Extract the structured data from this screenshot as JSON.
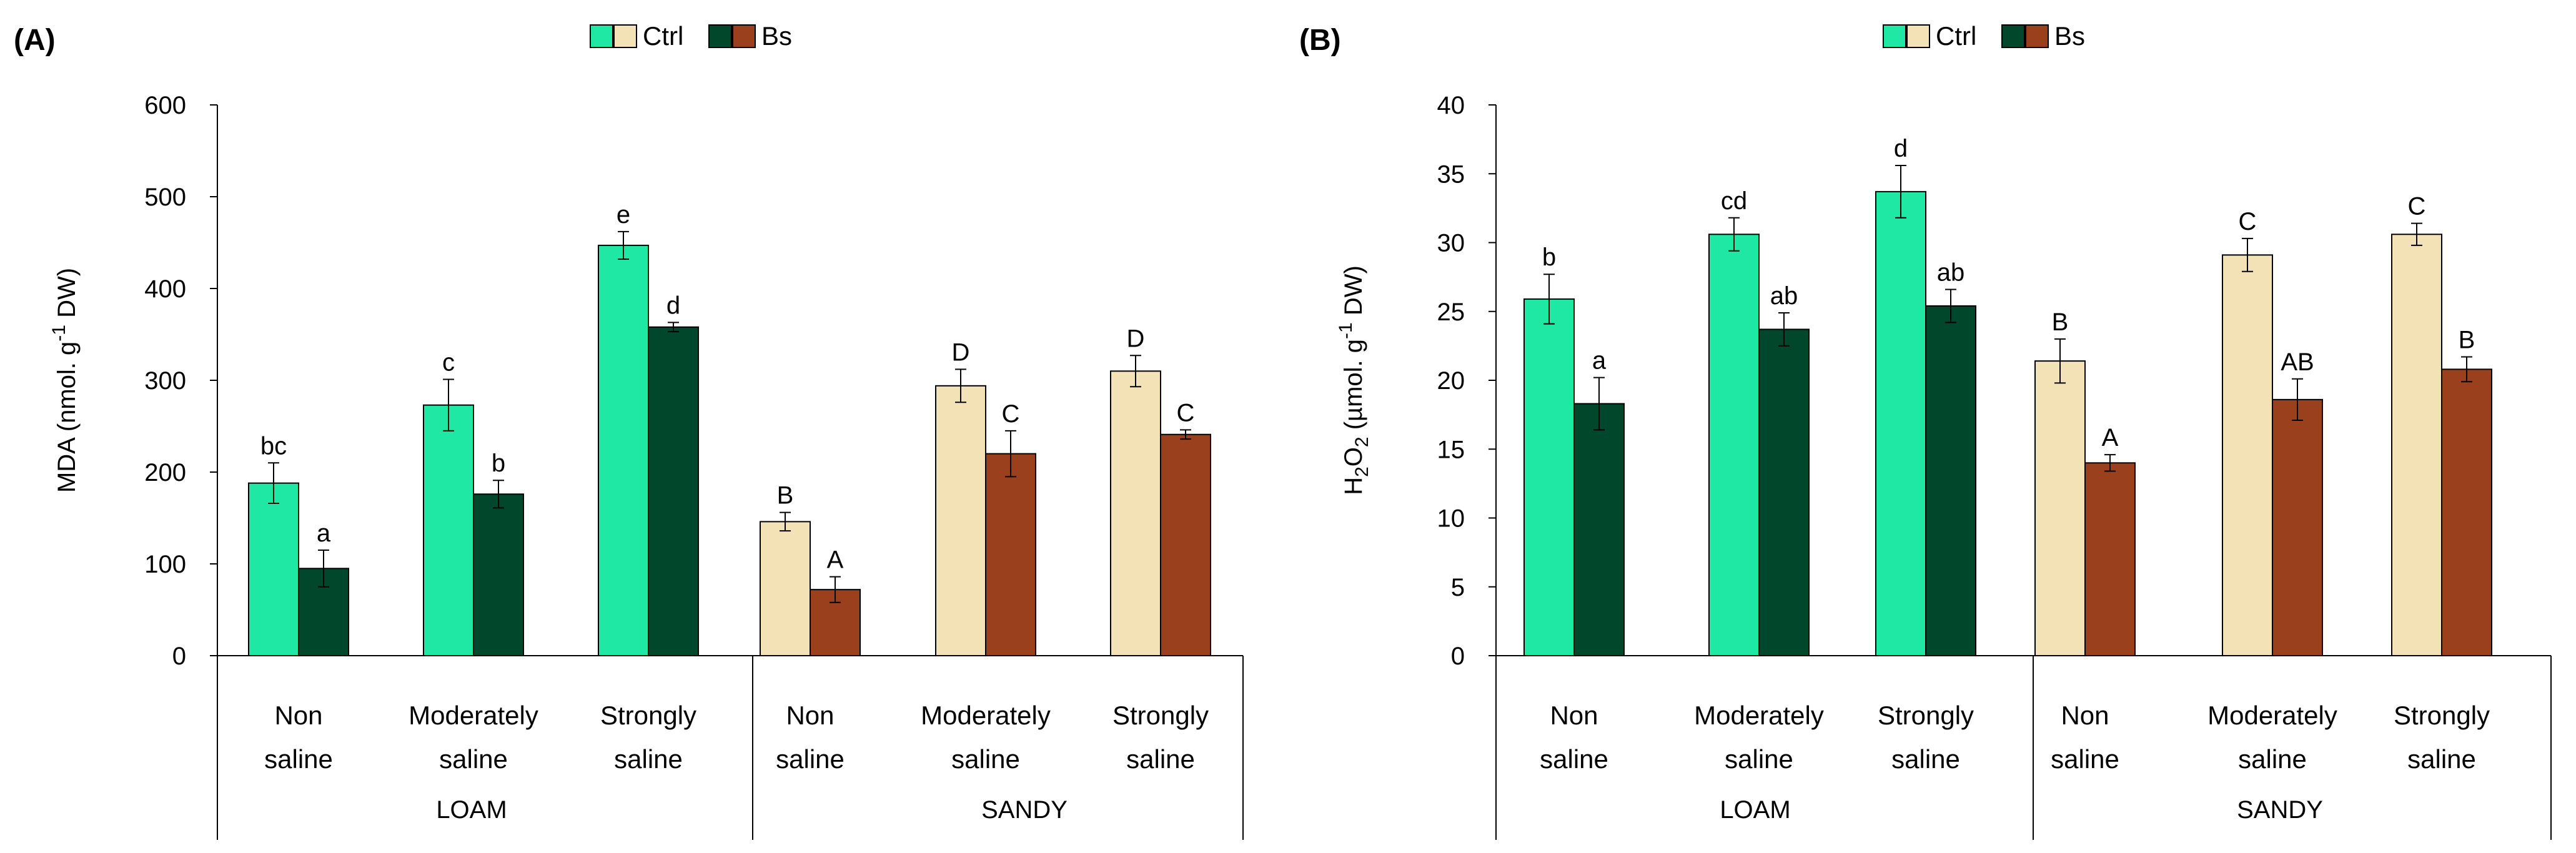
{
  "chart_data": [
    {
      "type": "bar",
      "panel_label": "(A)",
      "legend": {
        "ctrl": "Ctrl",
        "bs": "Bs"
      },
      "ylabel_parts": {
        "pre": "MDA (nmol. g",
        "sup": "-1",
        "post": " DW)"
      },
      "ylim": [
        0,
        600
      ],
      "yticks": [
        0,
        100,
        200,
        300,
        400,
        500,
        600
      ],
      "groups": [
        "LOAM",
        "SANDY"
      ],
      "categories": [
        [
          "Non",
          "saline"
        ],
        [
          "Moderately",
          "saline"
        ],
        [
          "Strongly",
          "saline"
        ],
        [
          "Non",
          "saline"
        ],
        [
          "Moderately",
          "saline"
        ],
        [
          "Strongly",
          "saline"
        ]
      ],
      "series": [
        {
          "name": "Ctrl",
          "values": [
            188,
            273,
            447,
            146,
            294,
            310
          ],
          "errors": [
            22,
            28,
            15,
            10,
            18,
            17
          ],
          "letters": [
            "bc",
            "c",
            "e",
            "B",
            "D",
            "D"
          ]
        },
        {
          "name": "Bs",
          "values": [
            95,
            176,
            358,
            72,
            220,
            241
          ],
          "errors": [
            20,
            15,
            5,
            14,
            25,
            5
          ],
          "letters": [
            "a",
            "b",
            "d",
            "A",
            "C",
            "C"
          ]
        }
      ],
      "colors": {
        "ctrl_loam": "#1ee8a4",
        "bs_loam": "#00472b",
        "ctrl_sandy": "#f2e2b6",
        "bs_sandy": "#9a401c"
      }
    },
    {
      "type": "bar",
      "panel_label": "(B)",
      "legend": {
        "ctrl": "Ctrl",
        "bs": "Bs"
      },
      "ylabel_parts": {
        "pre": "H",
        "sub1": "2",
        "mid": "O",
        "sub2": "2",
        "post": " (µmol. g",
        "sup": "-1",
        "end": " DW)"
      },
      "ylim": [
        0,
        40
      ],
      "yticks": [
        0,
        5,
        10,
        15,
        20,
        25,
        30,
        35,
        40
      ],
      "groups": [
        "LOAM",
        "SANDY"
      ],
      "categories": [
        [
          "Non",
          "saline"
        ],
        [
          "Moderately",
          "saline"
        ],
        [
          "Strongly",
          "saline"
        ],
        [
          "Non",
          "saline"
        ],
        [
          "Moderately",
          "saline"
        ],
        [
          "Strongly",
          "saline"
        ]
      ],
      "series": [
        {
          "name": "Ctrl",
          "values": [
            25.9,
            30.6,
            33.7,
            21.4,
            29.1,
            30.6
          ],
          "errors": [
            1.8,
            1.2,
            1.9,
            1.6,
            1.2,
            0.8
          ],
          "letters": [
            "b",
            "cd",
            "d",
            "B",
            "C",
            "C"
          ]
        },
        {
          "name": "Bs",
          "values": [
            18.3,
            23.7,
            25.4,
            14.0,
            18.6,
            20.8
          ],
          "errors": [
            1.9,
            1.2,
            1.2,
            0.6,
            1.5,
            0.9
          ],
          "letters": [
            "a",
            "ab",
            "ab",
            "A",
            "AB",
            "B"
          ]
        }
      ],
      "colors": {
        "ctrl_loam": "#1ee8a4",
        "bs_loam": "#00472b",
        "ctrl_sandy": "#f2e2b6",
        "bs_sandy": "#9a401c"
      }
    }
  ]
}
